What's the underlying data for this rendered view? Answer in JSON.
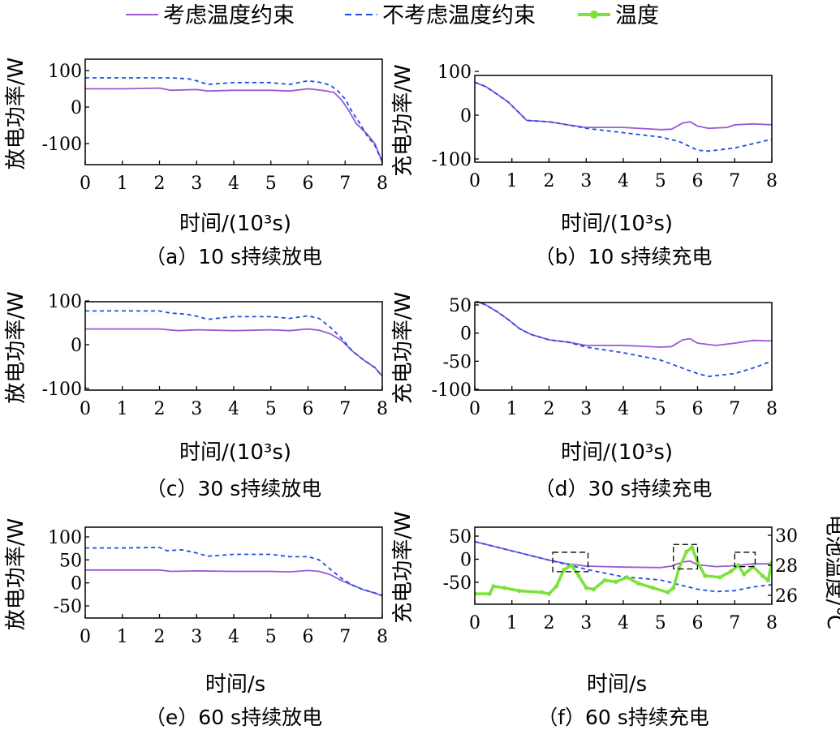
{
  "legend": {
    "items": [
      {
        "label": "考虑温度约束",
        "color": "#9b59d6",
        "style": "solid"
      },
      {
        "label": "不考虑温度约束",
        "color": "#1f4fe0",
        "style": "dashed"
      },
      {
        "label": "温度",
        "color": "#7be23a",
        "style": "marker"
      }
    ]
  },
  "chart_data": [
    {
      "id": "a",
      "type": "line",
      "caption": "（a）10 s持续放电",
      "xlabel": "时间/(10³s)",
      "ylabel": "放电功率/W",
      "xlim": [
        0,
        8
      ],
      "ylim": [
        -150,
        100
      ],
      "xticks": [
        "0",
        "1",
        "2",
        "3",
        "4",
        "5",
        "6",
        "7",
        "8"
      ],
      "yticks": [
        {
          "v": 100,
          "t": "100"
        },
        {
          "v": 0,
          "t": "0"
        },
        {
          "v": -100,
          "t": "-100"
        }
      ],
      "series": [
        {
          "name": "考虑温度约束",
          "style": "solid",
          "color": "#9b59d6",
          "x": [
            0,
            1,
            2,
            2.3,
            3,
            3.3,
            4,
            5,
            5.5,
            6,
            6.2,
            6.5,
            6.7,
            6.9,
            7.1,
            7.3,
            7.6,
            7.8,
            8
          ],
          "y": [
            50,
            50,
            52,
            46,
            48,
            44,
            46,
            46,
            44,
            50,
            48,
            44,
            40,
            20,
            -10,
            -45,
            -75,
            -100,
            -150
          ]
        },
        {
          "name": "不考虑温度约束",
          "style": "dashed",
          "color": "#1f4fe0",
          "x": [
            0,
            1,
            2,
            2.3,
            2.8,
            3.0,
            3.3,
            4,
            5,
            5.5,
            6,
            6.3,
            6.6,
            6.8,
            7.0,
            7.2,
            7.4,
            7.6,
            7.8,
            8
          ],
          "y": [
            80,
            80,
            80,
            80,
            77,
            72,
            62,
            67,
            67,
            62,
            72,
            68,
            60,
            45,
            22,
            -15,
            -45,
            -80,
            -105,
            -150
          ]
        }
      ]
    },
    {
      "id": "b",
      "type": "line",
      "caption": "（b）10 s持续充电",
      "xlabel": "时间/(10³s)",
      "ylabel": "充电功率/W",
      "xlim": [
        0,
        8
      ],
      "ylim": [
        -100,
        100
      ],
      "xticks": [
        "0",
        "1",
        "2",
        "3",
        "4",
        "5",
        "6",
        "7",
        "8"
      ],
      "yticks": [
        {
          "v": 100,
          "t": "100"
        },
        {
          "v": 0,
          "t": "0"
        },
        {
          "v": -100,
          "t": "-100"
        }
      ],
      "series": [
        {
          "name": "考虑温度约束",
          "style": "solid",
          "color": "#9b59d6",
          "x": [
            0,
            0.3,
            0.6,
            0.9,
            1.2,
            1.4,
            2,
            2.5,
            3,
            4,
            5,
            5.3,
            5.6,
            5.8,
            6,
            6.3,
            6.8,
            7,
            7.5,
            8
          ],
          "y": [
            75,
            65,
            48,
            30,
            5,
            -12,
            -15,
            -22,
            -28,
            -28,
            -33,
            -32,
            -18,
            -15,
            -25,
            -30,
            -28,
            -22,
            -20,
            -22
          ]
        },
        {
          "name": "不考虑温度约束",
          "style": "dashed",
          "color": "#1f4fe0",
          "x": [
            0,
            0.3,
            0.6,
            0.9,
            1.2,
            1.4,
            2,
            2.5,
            3,
            4,
            5,
            5.5,
            6,
            6.3,
            7,
            7.5,
            8
          ],
          "y": [
            75,
            65,
            48,
            30,
            5,
            -12,
            -15,
            -22,
            -30,
            -40,
            -50,
            -60,
            -80,
            -82,
            -75,
            -65,
            -55
          ]
        }
      ]
    },
    {
      "id": "c",
      "type": "line",
      "caption": "（c）30 s持续放电",
      "xlabel": "时间/(10³s)",
      "ylabel": "放电功率/W",
      "xlim": [
        0,
        8
      ],
      "ylim": [
        -100,
        100
      ],
      "xticks": [
        "0",
        "1",
        "2",
        "3",
        "4",
        "5",
        "6",
        "7",
        "8"
      ],
      "yticks": [
        {
          "v": 100,
          "t": "100"
        },
        {
          "v": 0,
          "t": "0"
        },
        {
          "v": -100,
          "t": "-100"
        }
      ],
      "series": [
        {
          "name": "考虑温度约束",
          "style": "solid",
          "color": "#9b59d6",
          "x": [
            0,
            1,
            2,
            2.5,
            3,
            4,
            5,
            5.5,
            6,
            6.3,
            6.6,
            6.9,
            7.2,
            7.5,
            7.8,
            8
          ],
          "y": [
            36,
            36,
            36,
            32,
            34,
            32,
            34,
            32,
            36,
            33,
            25,
            10,
            -15,
            -35,
            -52,
            -72
          ]
        },
        {
          "name": "不考虑温度约束",
          "style": "dashed",
          "color": "#1f4fe0",
          "x": [
            0,
            1,
            2,
            2.3,
            2.7,
            3,
            3.3,
            4,
            5,
            5.5,
            6,
            6.3,
            6.6,
            6.9,
            7.2,
            7.5,
            7.8,
            8
          ],
          "y": [
            77,
            77,
            77,
            72,
            70,
            65,
            58,
            64,
            64,
            60,
            66,
            60,
            40,
            15,
            -15,
            -35,
            -52,
            -72
          ]
        }
      ]
    },
    {
      "id": "d",
      "type": "line",
      "caption": "（d）30 s持续充电",
      "xlabel": "时间/(10³s)",
      "ylabel": "充电功率/W",
      "xlim": [
        0,
        8
      ],
      "ylim": [
        -100,
        60
      ],
      "xticks": [
        "0",
        "1",
        "2",
        "3",
        "4",
        "5",
        "6",
        "7",
        "8"
      ],
      "yticks": [
        {
          "v": 50,
          "t": "50"
        },
        {
          "v": 0,
          "t": "0"
        },
        {
          "v": -50,
          "t": "-50"
        },
        {
          "v": -100,
          "t": "-100"
        }
      ],
      "series": [
        {
          "name": "考虑温度约束",
          "style": "solid",
          "color": "#9b59d6",
          "x": [
            0,
            0.3,
            0.6,
            0.9,
            1.2,
            1.5,
            2,
            2.5,
            3,
            4,
            5,
            5.3,
            5.6,
            5.8,
            6,
            6.5,
            7,
            7.5,
            8
          ],
          "y": [
            58,
            50,
            38,
            24,
            8,
            -2,
            -12,
            -16,
            -22,
            -22,
            -25,
            -24,
            -12,
            -10,
            -18,
            -22,
            -18,
            -13,
            -14
          ]
        },
        {
          "name": "不考虑温度约束",
          "style": "dashed",
          "color": "#1f4fe0",
          "x": [
            0,
            0.3,
            0.6,
            0.9,
            1.2,
            1.5,
            2,
            2.5,
            3,
            4,
            5,
            5.5,
            6,
            6.3,
            7,
            7.5,
            8
          ],
          "y": [
            58,
            50,
            38,
            24,
            8,
            -2,
            -12,
            -16,
            -25,
            -35,
            -48,
            -60,
            -72,
            -77,
            -72,
            -62,
            -50
          ]
        }
      ]
    },
    {
      "id": "e",
      "type": "line",
      "caption": "（e）60 s持续放电",
      "xlabel": "时间/s",
      "ylabel": "放电功率/W",
      "xlim": [
        0,
        8
      ],
      "ylim": [
        -50,
        100
      ],
      "xticks": [
        "0",
        "1",
        "2",
        "3",
        "4",
        "5",
        "6",
        "7",
        "8"
      ],
      "yticks": [
        {
          "v": 100,
          "t": "100"
        },
        {
          "v": 50,
          "t": "50"
        },
        {
          "v": 0,
          "t": "0"
        },
        {
          "v": -50,
          "t": "-50"
        }
      ],
      "series": [
        {
          "name": "考虑温度约束",
          "style": "solid",
          "color": "#9b59d6",
          "x": [
            0,
            1,
            2,
            2.3,
            3,
            4,
            5,
            5.5,
            6,
            6.3,
            6.6,
            6.9,
            7.2,
            7.5,
            7.8,
            8
          ],
          "y": [
            28,
            28,
            28,
            25,
            26,
            25,
            25,
            24,
            27,
            25,
            18,
            5,
            -5,
            -15,
            -22,
            -28
          ]
        },
        {
          "name": "不考虑温度约束",
          "style": "dashed",
          "color": "#1f4fe0",
          "x": [
            0,
            1,
            2,
            2.2,
            2.6,
            3,
            3.3,
            4,
            5,
            5.5,
            6,
            6.3,
            6.6,
            6.9,
            7.2,
            7.5,
            7.8,
            8
          ],
          "y": [
            76,
            76,
            77,
            70,
            72,
            65,
            58,
            62,
            62,
            57,
            57,
            50,
            30,
            10,
            -5,
            -15,
            -22,
            -28
          ]
        }
      ]
    },
    {
      "id": "f",
      "type": "line",
      "caption": "（f）60 s持续充电",
      "xlabel": "时间/s",
      "ylabel": "充电功率/W",
      "y2label": "电池温度/℃",
      "xlim": [
        0,
        8
      ],
      "ylim": [
        -70,
        50
      ],
      "y2lim": [
        25.7,
        30
      ],
      "xticks": [
        "0",
        "1",
        "2",
        "3",
        "4",
        "5",
        "6",
        "7",
        "8"
      ],
      "yticks": [
        {
          "v": 50,
          "t": "50"
        },
        {
          "v": 0,
          "t": "0"
        },
        {
          "v": -50,
          "t": "-50"
        }
      ],
      "y2ticks": [
        {
          "v": 30,
          "t": "30"
        },
        {
          "v": 28,
          "t": "28"
        },
        {
          "v": 26,
          "t": "26"
        }
      ],
      "series": [
        {
          "name": "考虑温度约束",
          "style": "solid",
          "color": "#9b59d6",
          "x": [
            0,
            0.5,
            1,
            1.5,
            2,
            2.5,
            3,
            3.5,
            4,
            5,
            5.3,
            5.6,
            5.8,
            6,
            6.5,
            7,
            7.5,
            8
          ],
          "y": [
            38,
            28,
            18,
            8,
            -2,
            -10,
            -15,
            -16,
            -17,
            -18,
            -15,
            -6,
            -4,
            -12,
            -16,
            -14,
            -10,
            -10
          ]
        },
        {
          "name": "不考虑温度约束",
          "style": "dashed",
          "color": "#1f4fe0",
          "x": [
            0,
            0.5,
            1,
            1.5,
            2,
            2.5,
            3,
            3.5,
            4,
            5,
            5.5,
            6,
            6.5,
            7,
            7.5,
            8
          ],
          "y": [
            38,
            28,
            18,
            8,
            -2,
            -12,
            -22,
            -30,
            -38,
            -45,
            -55,
            -65,
            -70,
            -68,
            -60,
            -55
          ]
        },
        {
          "name": "温度",
          "style": "marker",
          "color": "#7be23a",
          "axis": "y2",
          "x": [
            0,
            0.4,
            0.5,
            0.8,
            1.2,
            1.8,
            2.0,
            2.2,
            2.4,
            2.6,
            2.8,
            3.0,
            3.2,
            3.5,
            3.8,
            4.1,
            4.4,
            4.8,
            5.2,
            5.35,
            5.5,
            5.7,
            5.85,
            6.0,
            6.2,
            6.6,
            6.9,
            7.1,
            7.25,
            7.5,
            7.75,
            7.9,
            8
          ],
          "y": [
            26.1,
            26.1,
            26.6,
            26.5,
            26.3,
            26.2,
            26.1,
            26.6,
            27.7,
            28.0,
            27.3,
            26.5,
            26.4,
            27.0,
            26.9,
            27.2,
            26.8,
            26.5,
            26.2,
            26.5,
            27.8,
            28.9,
            29.2,
            28.2,
            27.3,
            27.2,
            27.6,
            28.0,
            27.4,
            27.9,
            27.3,
            27.0,
            28.2
          ]
        }
      ],
      "annotations": [
        {
          "type": "dashed-box",
          "x0": 2.1,
          "x1": 3.05,
          "y0": -27,
          "y1": 15
        },
        {
          "type": "dashed-box",
          "x0": 5.35,
          "x1": 6.0,
          "y0": -21,
          "y1": 32
        },
        {
          "type": "dashed-box",
          "x0": 7.0,
          "x1": 7.55,
          "y0": -16,
          "y1": 15
        }
      ]
    }
  ]
}
